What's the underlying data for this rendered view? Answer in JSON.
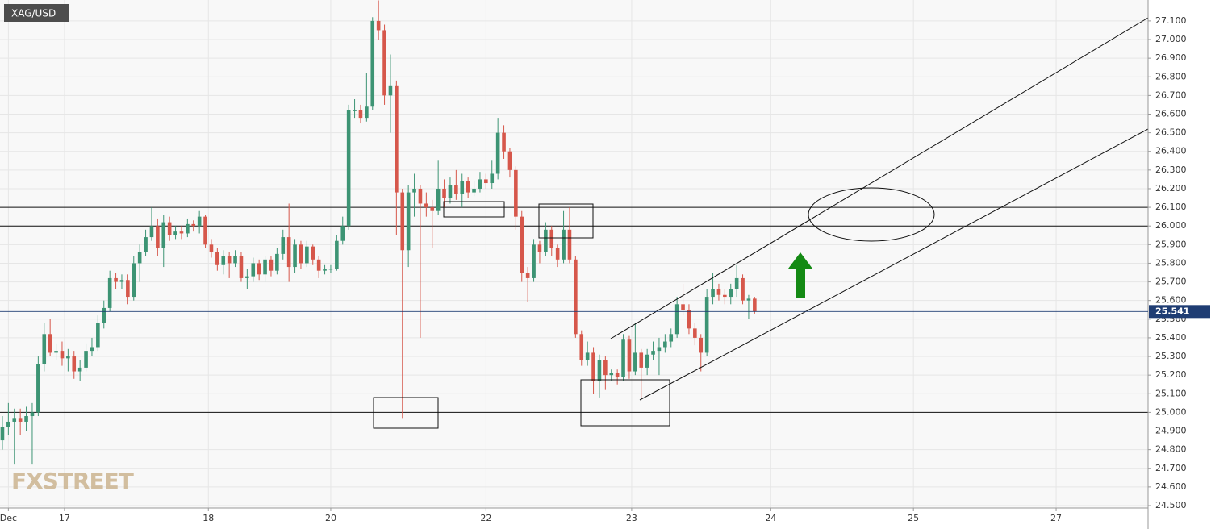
{
  "chart_data": {
    "type": "candlestick",
    "title": "XAG/USD",
    "watermark": "FXSTREET",
    "x": [
      0.4,
      1.4,
      2.4,
      3.4,
      4.4,
      5.4,
      6.4,
      7.4,
      8.4,
      9.4,
      10.4,
      11.4,
      12.4,
      13.4,
      14.4,
      15.4,
      16.4,
      17.4,
      18.4,
      19.4,
      20.4,
      21.4,
      22.4,
      23.4,
      24.4,
      25.4,
      26.4,
      27.4,
      28.4,
      29.4,
      30.4,
      31.4,
      32.4,
      33.4,
      34.4,
      35.4,
      36.4,
      37.4,
      38.4,
      39.4,
      40.4,
      41.4,
      42.4,
      43.4,
      44.4,
      45.4,
      46.4,
      47.4,
      48.4,
      49.4,
      50.4,
      51.4,
      52.4,
      53.4,
      54.4,
      55.4,
      56.4,
      57.4,
      58.4,
      59.4,
      60.4,
      61.4,
      62.4,
      63.4,
      64.4,
      65.4,
      66.4,
      67.4,
      68.4,
      69.4,
      70.4,
      71.4,
      72.4,
      73.4,
      74.4,
      75.4,
      76.4,
      77.4,
      78.4,
      79.4,
      80.4,
      81.4,
      82.4,
      83.4,
      84.4,
      85.4,
      86.4,
      87.4,
      88.4,
      89.4,
      90.4,
      91.4,
      92.4,
      93.4,
      94.4,
      95.4,
      96.4,
      97.4,
      98.4,
      99.4,
      100.4,
      101.4,
      102.4,
      103.4,
      104.4,
      105.4,
      106.4,
      107.4,
      108.4,
      109.4,
      110.4,
      111.4,
      112.4,
      113.4,
      114.4,
      115.4,
      116.4,
      117.4,
      118.4,
      119.4,
      120.4,
      121.4,
      122.4,
      123.4,
      124.4,
      125.4,
      126.4
    ],
    "open": [
      24.85,
      24.92,
      24.95,
      24.97,
      24.95,
      24.98,
      25.0,
      25.26,
      25.42,
      25.32,
      25.33,
      25.29,
      25.3,
      25.22,
      25.24,
      25.33,
      25.35,
      25.48,
      25.56,
      25.72,
      25.7,
      25.71,
      25.62,
      25.8,
      25.86,
      25.94,
      26.0,
      25.88,
      26.02,
      25.95,
      25.97,
      25.96,
      26.01,
      26.0,
      26.05,
      25.9,
      25.86,
      25.79,
      25.84,
      25.8,
      25.84,
      25.72,
      25.73,
      25.8,
      25.74,
      25.82,
      25.76,
      25.85,
      25.94,
      25.78,
      25.9,
      25.8,
      25.89,
      25.82,
      25.76,
      25.77,
      25.77,
      25.92,
      26.0,
      26.62,
      26.62,
      26.58,
      26.64,
      27.1,
      27.05,
      26.7,
      26.75,
      26.18,
      25.87,
      26.18,
      26.2,
      26.12,
      26.1,
      26.08,
      26.2,
      26.15,
      26.22,
      26.17,
      26.24,
      26.18,
      26.2,
      26.25,
      26.23,
      26.28,
      26.5,
      26.4,
      26.3,
      26.05,
      25.75,
      25.72,
      25.9,
      25.86,
      25.98,
      25.88,
      25.82,
      25.98,
      25.82,
      25.42,
      25.28,
      25.32,
      25.17,
      25.28,
      25.2,
      25.21,
      25.19,
      25.39,
      25.22,
      25.32,
      25.24,
      25.31,
      25.33,
      25.35,
      25.38,
      25.42,
      25.58,
      25.55,
      25.45,
      25.4,
      25.32,
      25.62,
      25.66,
      25.63,
      25.62,
      25.66,
      25.72,
      25.6,
      25.61
    ],
    "high": [
      24.98,
      25.05,
      25.02,
      25.02,
      25.03,
      25.05,
      25.3,
      25.48,
      25.5,
      25.37,
      25.38,
      25.34,
      25.33,
      25.28,
      25.37,
      25.4,
      25.52,
      25.6,
      25.76,
      25.75,
      25.74,
      25.74,
      25.84,
      25.9,
      25.98,
      26.1,
      26.04,
      26.06,
      26.05,
      26.0,
      26.0,
      26.04,
      26.03,
      26.08,
      26.06,
      25.93,
      25.88,
      25.87,
      25.86,
      25.87,
      25.86,
      25.77,
      25.83,
      25.82,
      25.84,
      25.84,
      25.88,
      25.98,
      26.12,
      25.93,
      25.92,
      25.92,
      25.9,
      25.84,
      25.79,
      25.79,
      25.95,
      26.05,
      26.65,
      26.68,
      26.65,
      26.82,
      27.12,
      27.21,
      27.08,
      26.92,
      26.78,
      26.2,
      26.22,
      26.28,
      26.22,
      26.18,
      26.14,
      26.35,
      26.25,
      26.26,
      26.3,
      26.28,
      26.26,
      26.24,
      26.29,
      26.28,
      26.35,
      26.58,
      26.54,
      26.42,
      26.32,
      26.08,
      25.78,
      25.93,
      25.92,
      26.02,
      26.0,
      25.9,
      26.08,
      26.1,
      25.84,
      25.44,
      25.38,
      25.35,
      25.31,
      25.3,
      25.23,
      25.23,
      25.42,
      25.41,
      25.48,
      25.34,
      25.34,
      25.38,
      25.4,
      25.42,
      25.45,
      25.62,
      25.69,
      25.58,
      25.48,
      25.42,
      25.66,
      25.75,
      25.69,
      25.66,
      25.69,
      25.79,
      25.74,
      25.63,
      25.62
    ],
    "low": [
      24.8,
      24.88,
      24.72,
      24.88,
      24.9,
      24.72,
      24.98,
      25.22,
      25.3,
      25.28,
      25.25,
      25.22,
      25.18,
      25.17,
      25.22,
      25.3,
      25.33,
      25.45,
      25.54,
      25.66,
      25.66,
      25.58,
      25.6,
      25.7,
      25.84,
      25.92,
      25.84,
      25.78,
      25.92,
      25.93,
      25.93,
      25.94,
      25.97,
      25.96,
      25.88,
      25.83,
      25.76,
      25.74,
      25.72,
      25.78,
      25.7,
      25.66,
      25.7,
      25.71,
      25.7,
      25.73,
      25.74,
      25.82,
      25.7,
      25.75,
      25.77,
      25.78,
      25.79,
      25.72,
      25.74,
      25.75,
      25.76,
      25.9,
      25.98,
      26.58,
      26.55,
      26.56,
      26.62,
      27.0,
      26.65,
      26.5,
      25.95,
      24.97,
      25.78,
      26.05,
      25.4,
      26.05,
      25.88,
      26.06,
      26.1,
      26.12,
      26.14,
      26.1,
      26.15,
      26.16,
      26.18,
      26.2,
      26.2,
      26.25,
      26.36,
      26.26,
      25.98,
      25.7,
      25.59,
      25.7,
      25.8,
      25.84,
      25.84,
      25.78,
      25.8,
      25.8,
      25.4,
      25.25,
      25.25,
      25.1,
      25.08,
      25.12,
      25.17,
      25.15,
      25.17,
      25.18,
      25.2,
      25.08,
      25.2,
      25.28,
      25.2,
      25.32,
      25.35,
      25.4,
      25.52,
      25.42,
      25.36,
      25.22,
      25.3,
      25.58,
      25.6,
      25.58,
      25.58,
      25.62,
      25.58,
      25.5,
      25.53
    ],
    "close": [
      24.92,
      24.95,
      24.97,
      24.95,
      24.98,
      25.0,
      25.26,
      25.42,
      25.32,
      25.33,
      25.29,
      25.3,
      25.22,
      25.24,
      25.33,
      25.35,
      25.48,
      25.56,
      25.72,
      25.7,
      25.71,
      25.62,
      25.8,
      25.86,
      25.94,
      26.0,
      25.88,
      26.02,
      25.95,
      25.97,
      25.96,
      26.01,
      26.0,
      26.05,
      25.9,
      25.86,
      25.79,
      25.84,
      25.8,
      25.84,
      25.72,
      25.73,
      25.8,
      25.74,
      25.82,
      25.76,
      25.85,
      25.94,
      25.78,
      25.9,
      25.8,
      25.89,
      25.82,
      25.76,
      25.77,
      25.77,
      25.92,
      26.0,
      26.62,
      26.62,
      26.58,
      26.64,
      27.1,
      27.05,
      26.7,
      26.75,
      26.18,
      25.87,
      26.18,
      26.2,
      26.12,
      26.1,
      26.08,
      26.2,
      26.15,
      26.22,
      26.17,
      26.24,
      26.18,
      26.2,
      26.25,
      26.23,
      26.28,
      26.5,
      26.4,
      26.3,
      26.05,
      25.75,
      25.72,
      25.9,
      25.86,
      25.98,
      25.88,
      25.82,
      25.98,
      25.82,
      25.42,
      25.28,
      25.32,
      25.17,
      25.28,
      25.2,
      25.21,
      25.19,
      25.39,
      25.22,
      25.32,
      25.24,
      25.31,
      25.33,
      25.35,
      25.38,
      25.42,
      25.58,
      25.55,
      25.45,
      25.4,
      25.32,
      25.62,
      25.66,
      25.63,
      25.62,
      25.66,
      25.72,
      25.6,
      25.61,
      25.541
    ],
    "up_color": "#3d9474",
    "down_color": "#d6574b",
    "last_price": 25.541,
    "last_price_color": "#1f3d73",
    "levels": [
      26.1,
      26.0,
      25.0
    ],
    "xlim": [
      0,
      192.3
    ],
    "ylim": [
      24.487,
      27.212
    ],
    "xticks": [
      {
        "value": 1.4,
        "label": "Dec"
      },
      {
        "value": 10.8,
        "label": "17"
      },
      {
        "value": 34.9,
        "label": "18"
      },
      {
        "value": 55.4,
        "label": "20"
      },
      {
        "value": 81.4,
        "label": "22"
      },
      {
        "value": 105.8,
        "label": "23"
      },
      {
        "value": 129.1,
        "label": "24"
      },
      {
        "value": 153.0,
        "label": "25"
      },
      {
        "value": 176.9,
        "label": "27"
      }
    ],
    "yticks": [
      {
        "value": 24.5,
        "label": "24.500"
      },
      {
        "value": 24.6,
        "label": "24.600"
      },
      {
        "value": 24.7,
        "label": "24.700"
      },
      {
        "value": 24.8,
        "label": "24.800"
      },
      {
        "value": 24.9,
        "label": "24.900"
      },
      {
        "value": 25.0,
        "label": "25.000"
      },
      {
        "value": 25.1,
        "label": "25.100"
      },
      {
        "value": 25.2,
        "label": "25.200"
      },
      {
        "value": 25.3,
        "label": "25.300"
      },
      {
        "value": 25.4,
        "label": "25.400"
      },
      {
        "value": 25.5,
        "label": "25.500"
      },
      {
        "value": 25.6,
        "label": "25.600"
      },
      {
        "value": 25.7,
        "label": "25.700"
      },
      {
        "value": 25.8,
        "label": "25.800"
      },
      {
        "value": 25.9,
        "label": "25.900"
      },
      {
        "value": 26.0,
        "label": "26.000"
      },
      {
        "value": 26.1,
        "label": "26.100"
      },
      {
        "value": 26.2,
        "label": "26.200"
      },
      {
        "value": 26.3,
        "label": "26.300"
      },
      {
        "value": 26.4,
        "label": "26.400"
      },
      {
        "value": 26.5,
        "label": "26.500"
      },
      {
        "value": 26.6,
        "label": "26.600"
      },
      {
        "value": 26.7,
        "label": "26.700"
      },
      {
        "value": 26.8,
        "label": "26.800"
      },
      {
        "value": 26.9,
        "label": "26.900"
      },
      {
        "value": 27.0,
        "label": "27.000"
      },
      {
        "value": 27.1,
        "label": "27.100"
      }
    ],
    "grid": true
  }
}
